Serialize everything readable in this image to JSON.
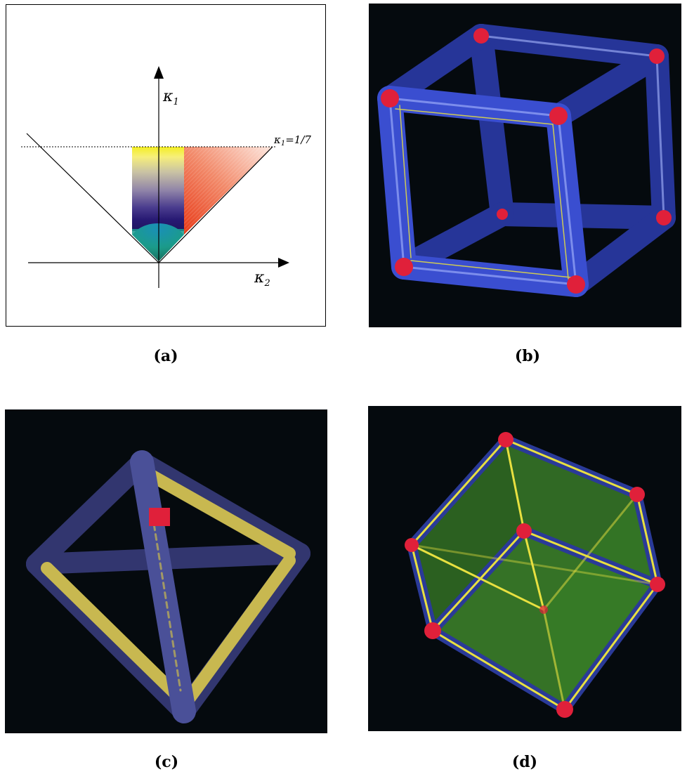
{
  "figure": {
    "panels": [
      {
        "id": "a",
        "caption": "(a)",
        "kind": "diagram"
      },
      {
        "id": "b",
        "caption": "(b)",
        "kind": "rendering",
        "subject": "tube-rendered cube wireframe"
      },
      {
        "id": "c",
        "caption": "(c)",
        "kind": "rendering",
        "subject": "tube-rendered octahedron wireframe"
      },
      {
        "id": "d",
        "caption": "(d)",
        "kind": "rendering",
        "subject": "translucent green cube with tube edges"
      }
    ],
    "diagram_a": {
      "y_axis_label": "κ",
      "y_axis_sub": "1",
      "x_axis_label": "κ",
      "x_axis_sub": "2",
      "threshold_label": "κ",
      "threshold_sub": "1",
      "threshold_value": "=1/7"
    },
    "colors": {
      "background_dark": "#050a0e",
      "tube_blue": "#3848c8",
      "joint_red": "#e0203a",
      "edge_yellow": "#e8e040",
      "face_green": "#5cc83a"
    }
  }
}
